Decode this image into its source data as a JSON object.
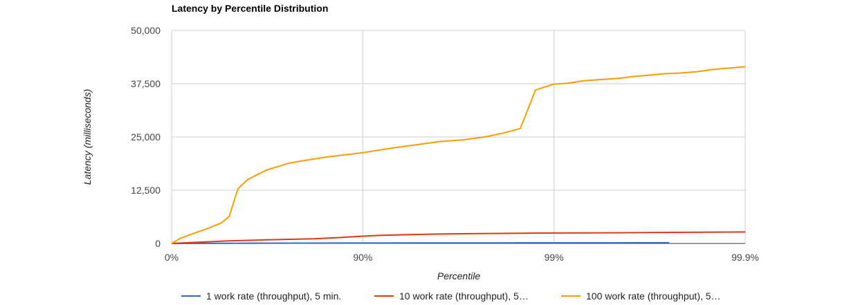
{
  "chart_data": {
    "type": "line",
    "title": "Latency by Percentile Distribution",
    "xlabel": "Percentile",
    "ylabel": "Latency (milliseconds)",
    "x_scale": "percentile-log",
    "x_ticks": [
      {
        "label": "0%",
        "value": 0
      },
      {
        "label": "90%",
        "value": 90
      },
      {
        "label": "99%",
        "value": 99
      },
      {
        "label": "99.9%",
        "value": 99.9
      }
    ],
    "y_ticks": [
      {
        "label": "0",
        "value": 0
      },
      {
        "label": "12,500",
        "value": 12500
      },
      {
        "label": "25,000",
        "value": 25000
      },
      {
        "label": "37,500",
        "value": 37500
      },
      {
        "label": "50,000",
        "value": 50000
      }
    ],
    "ylim": [
      0,
      50000
    ],
    "grid": true,
    "legend_position": "bottom",
    "series": [
      {
        "name": "1 work rate (throughput), 5 min.",
        "color": "#3366cc",
        "points": [
          [
            0,
            0
          ],
          [
            50,
            50
          ],
          [
            80,
            80
          ],
          [
            90,
            100
          ],
          [
            95,
            110
          ],
          [
            98,
            130
          ],
          [
            99,
            140
          ],
          [
            99.5,
            150
          ],
          [
            99.65,
            160
          ],
          [
            99.75,
            170
          ]
        ]
      },
      {
        "name": "10 work rate (throughput), 5…",
        "color": "#dc3912",
        "points": [
          [
            0,
            0
          ],
          [
            20,
            200
          ],
          [
            50,
            600
          ],
          [
            65,
            800
          ],
          [
            75,
            950
          ],
          [
            82,
            1100
          ],
          [
            87,
            1400
          ],
          [
            90,
            1700
          ],
          [
            92,
            1900
          ],
          [
            94,
            2050
          ],
          [
            96,
            2200
          ],
          [
            97.5,
            2300
          ],
          [
            98.5,
            2400
          ],
          [
            99,
            2450
          ],
          [
            99.5,
            2500
          ],
          [
            99.75,
            2600
          ],
          [
            99.9,
            2700
          ]
        ]
      },
      {
        "name": "100 work rate (throughput), 5…",
        "color": "#ff9900",
        "points": [
          [
            0,
            0
          ],
          [
            10,
            1200
          ],
          [
            25,
            2500
          ],
          [
            35,
            3500
          ],
          [
            45,
            4800
          ],
          [
            50,
            6300
          ],
          [
            55,
            12800
          ],
          [
            60,
            15000
          ],
          [
            68,
            17200
          ],
          [
            72,
            18000
          ],
          [
            76,
            18900
          ],
          [
            80,
            19500
          ],
          [
            84,
            20200
          ],
          [
            87,
            20700
          ],
          [
            90,
            21300
          ],
          [
            92,
            22000
          ],
          [
            93.5,
            22600
          ],
          [
            95,
            23300
          ],
          [
            96,
            23900
          ],
          [
            97,
            24300
          ],
          [
            97.7,
            25000
          ],
          [
            98.2,
            26000
          ],
          [
            98.5,
            27000
          ],
          [
            98.75,
            36000
          ],
          [
            99,
            37400
          ],
          [
            99.15,
            37600
          ],
          [
            99.3,
            38200
          ],
          [
            99.45,
            38500
          ],
          [
            99.55,
            38800
          ],
          [
            99.62,
            39200
          ],
          [
            99.68,
            39500
          ],
          [
            99.73,
            39800
          ],
          [
            99.78,
            40000
          ],
          [
            99.82,
            40300
          ],
          [
            99.85,
            40800
          ],
          [
            99.88,
            41200
          ],
          [
            99.9,
            41500
          ]
        ]
      }
    ]
  }
}
